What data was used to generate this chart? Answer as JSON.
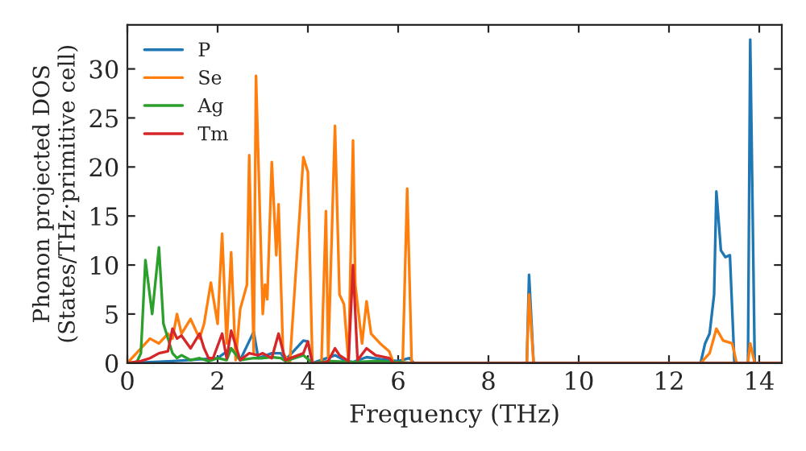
{
  "chart_data": {
    "type": "line",
    "xlabel": "Frequency (THz)",
    "ylabel": "Phonon projected DOS\n(States/THz·primitive cell)",
    "xlim": [
      0,
      14.5
    ],
    "ylim": [
      0,
      34.5
    ],
    "xticks": [
      0,
      2,
      4,
      6,
      8,
      10,
      12,
      14
    ],
    "yticks": [
      0,
      5,
      10,
      15,
      20,
      25,
      30
    ],
    "legend": "top left",
    "grid": false,
    "series": [
      {
        "name": "P",
        "color": "#1f77b4",
        "x": [
          0,
          1,
          2,
          2.3,
          2.5,
          2.8,
          2.9,
          3.2,
          3.4,
          3.5,
          3.9,
          4.0,
          4.1,
          4.6,
          4.8,
          5.0,
          5.3,
          5.6,
          6.0,
          6.25,
          6.35,
          8.85,
          8.9,
          9.0,
          12.7,
          12.8,
          12.9,
          13.0,
          13.05,
          13.15,
          13.25,
          13.35,
          13.45,
          13.75,
          13.8,
          13.9,
          14.5
        ],
        "values": [
          0,
          0.2,
          0.5,
          1.5,
          0.3,
          3.2,
          0.5,
          1,
          1,
          0.3,
          2.3,
          2.2,
          0,
          0.8,
          0.3,
          0.1,
          0.6,
          0.4,
          0.2,
          0.5,
          0,
          0,
          9,
          0,
          0,
          2,
          3,
          7,
          17.5,
          11.5,
          10.8,
          11,
          0,
          0,
          33,
          0,
          0
        ]
      },
      {
        "name": "Se",
        "color": "#ff7f0e",
        "x": [
          0,
          0.3,
          0.5,
          0.7,
          0.9,
          1.0,
          1.1,
          1.2,
          1.4,
          1.6,
          1.7,
          1.85,
          2.0,
          2.1,
          2.2,
          2.3,
          2.4,
          2.5,
          2.65,
          2.7,
          2.8,
          2.85,
          3.0,
          3.05,
          3.1,
          3.2,
          3.3,
          3.35,
          3.45,
          3.6,
          3.9,
          4.0,
          4.1,
          4.3,
          4.4,
          4.45,
          4.6,
          4.7,
          4.8,
          4.9,
          5.0,
          5.05,
          5.2,
          5.3,
          5.4,
          5.6,
          5.8,
          5.9,
          6.1,
          6.2,
          6.3,
          8.85,
          8.9,
          9.0,
          12.7,
          12.9,
          13.05,
          13.2,
          13.4,
          13.5,
          13.75,
          13.8,
          13.9,
          14.5
        ],
        "values": [
          0,
          1.5,
          2.5,
          2,
          3,
          2.5,
          5,
          3,
          4.5,
          2.5,
          4,
          8.2,
          4,
          13.2,
          2,
          11.3,
          0.3,
          5.5,
          8,
          21.2,
          1,
          29.3,
          5,
          8,
          6.5,
          20.5,
          11,
          16.2,
          1,
          0,
          21,
          19.5,
          0,
          0,
          15.5,
          0.5,
          24.2,
          7,
          6,
          0,
          22.7,
          8,
          2,
          6.3,
          3,
          2,
          1.2,
          0,
          0,
          17.8,
          0,
          0,
          7,
          0,
          0,
          1,
          3.5,
          2.3,
          2,
          0,
          0,
          2,
          0,
          0
        ]
      },
      {
        "name": "Ag",
        "color": "#2ca02c",
        "x": [
          0,
          0.2,
          0.3,
          0.4,
          0.55,
          0.7,
          0.8,
          0.9,
          1.0,
          1.1,
          1.2,
          1.4,
          1.6,
          1.8,
          2.0,
          2.2,
          2.3,
          2.5,
          2.8,
          3.0,
          3.2,
          3.4,
          3.5,
          3.9,
          4.1,
          4.5,
          5.0,
          5.5,
          6.0,
          6.3,
          14.5
        ],
        "values": [
          0,
          0,
          1,
          10.5,
          5,
          11.8,
          4,
          2.5,
          1,
          0.5,
          0.8,
          0.3,
          0.5,
          0.2,
          0.5,
          0.3,
          1.5,
          0.3,
          0.5,
          0.5,
          0.6,
          0.5,
          0.2,
          0.8,
          0,
          0.2,
          0.1,
          0.2,
          0.1,
          0,
          0
        ]
      },
      {
        "name": "Tm",
        "color": "#d62728",
        "x": [
          0,
          0.3,
          0.5,
          0.7,
          0.9,
          1.0,
          1.1,
          1.2,
          1.4,
          1.6,
          1.7,
          1.8,
          1.9,
          2.1,
          2.2,
          2.3,
          2.5,
          2.7,
          2.9,
          3.0,
          3.2,
          3.35,
          3.5,
          3.9,
          4.0,
          4.1,
          4.3,
          4.45,
          4.6,
          4.7,
          4.9,
          5.0,
          5.1,
          5.3,
          5.5,
          5.8,
          5.9,
          6.3,
          14.5
        ],
        "values": [
          0,
          0.2,
          0.5,
          1,
          1.2,
          3.5,
          2.5,
          2.8,
          1.5,
          3,
          1.5,
          0.5,
          0.5,
          3,
          0.5,
          3.3,
          0.3,
          1,
          0.8,
          1,
          0.5,
          3,
          0.3,
          1,
          2.2,
          0,
          0,
          0.2,
          1.5,
          0.8,
          0.2,
          10,
          0.3,
          1.5,
          0.8,
          0.5,
          0,
          0,
          0
        ]
      }
    ]
  }
}
